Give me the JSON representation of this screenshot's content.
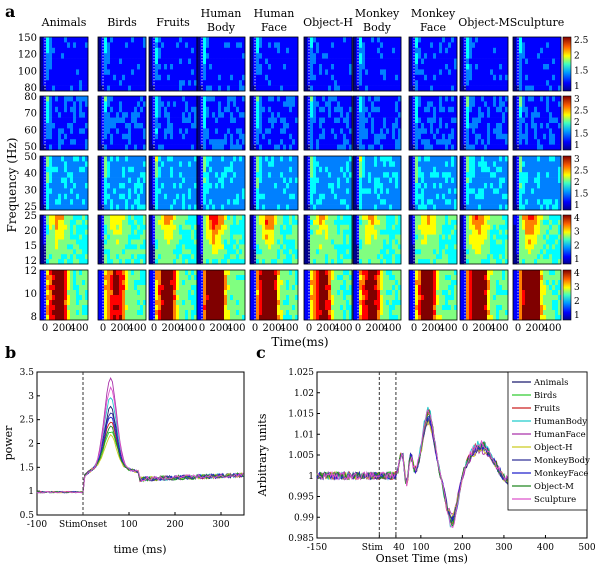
{
  "panel_labels": {
    "a": "a",
    "b": "b",
    "c": "c"
  },
  "panel_a": {
    "categories": [
      "Animals",
      "Birds",
      "Fruits",
      "Human Body",
      "Human Face",
      "Object-H",
      "Monkey Body",
      "Monkey Face",
      "Object-M",
      "Sculpture"
    ],
    "ylabel": "Frequency (Hz)",
    "xlabel": "Time(ms)",
    "x_tick_labels": [
      "0",
      "200",
      "400"
    ],
    "bands": [
      {
        "y_ticks": [
          "150",
          "120",
          "100",
          "80"
        ],
        "colorbar_ticks": [
          "2.5",
          "2",
          "1.5",
          "1"
        ]
      },
      {
        "y_ticks": [
          "80",
          "70",
          "60",
          "50"
        ],
        "colorbar_ticks": [
          "3",
          "2.5",
          "2",
          "1.5",
          "1"
        ]
      },
      {
        "y_ticks": [
          "50",
          "40",
          "30",
          "25"
        ],
        "colorbar_ticks": [
          "3",
          "2.5",
          "2",
          "1.5",
          "1"
        ]
      },
      {
        "y_ticks": [
          "25",
          "20",
          "15",
          "12"
        ],
        "colorbar_ticks": [
          "4",
          "3",
          "2",
          "1"
        ]
      },
      {
        "y_ticks": [
          "12",
          "10",
          "8"
        ],
        "colorbar_ticks": [
          "4",
          "3",
          "2",
          "1"
        ]
      }
    ],
    "colormap": [
      "#00008f",
      "#0000ff",
      "#0080ff",
      "#00ffff",
      "#80ff80",
      "#ffff00",
      "#ff8000",
      "#ff0000",
      "#800000"
    ]
  },
  "series_names": [
    "Animals",
    "Birds",
    "Fruits",
    "HumanBody",
    "HumanFace",
    "Object-H",
    "MonkeyBody",
    "MonkeyFace",
    "Object-M",
    "Sculpture"
  ],
  "series_colors": [
    "#1a1a6e",
    "#33cc33",
    "#cc2222",
    "#22cccc",
    "#aa33aa",
    "#cccc22",
    "#333399",
    "#2222cc",
    "#228822",
    "#dd55cc"
  ],
  "chart_data": [
    {
      "type": "line",
      "panel": "b",
      "xlabel": "time (ms)",
      "ylabel": "power",
      "xlim": [
        -100,
        350
      ],
      "ylim": [
        0.5,
        3.5
      ],
      "x_ticks": [
        -100,
        0,
        100,
        200,
        300
      ],
      "x_tick_labels": [
        "-100",
        "StimOnset",
        "100",
        "200",
        "300"
      ],
      "y_ticks": [
        0.5,
        1,
        1.5,
        2,
        2.5,
        3,
        3.5
      ],
      "y_tick_labels": [
        "0.5",
        "1",
        "1.5",
        "2",
        "2.5",
        "3",
        "3.5"
      ],
      "vline_at": 0,
      "peaks": [
        2.5,
        2.0,
        2.2,
        2.7,
        3.1,
        1.9,
        2.4,
        2.3,
        2.1,
        2.9
      ]
    },
    {
      "type": "line",
      "panel": "c",
      "xlabel": "Time (ms)",
      "ylabel": "Arbitrary units",
      "xlim": [
        -150,
        500
      ],
      "ylim": [
        0.985,
        1.025
      ],
      "x_ticks": [
        -150,
        0,
        40,
        100,
        200,
        300,
        400,
        500
      ],
      "x_tick_labels": [
        "-150",
        "Stim",
        "40",
        "100",
        "200",
        "300",
        "400",
        "500"
      ],
      "x_extra_label": "Onset",
      "y_ticks": [
        0.985,
        0.99,
        0.995,
        1,
        1.005,
        1.01,
        1.015,
        1.02,
        1.025
      ],
      "y_tick_labels": [
        "0.985",
        "0.99",
        "0.995",
        "1",
        "1.005",
        "1.01",
        "1.015",
        "1.02",
        "1.025"
      ],
      "vlines_at": [
        0,
        40
      ],
      "legend_position": "top-right"
    }
  ]
}
